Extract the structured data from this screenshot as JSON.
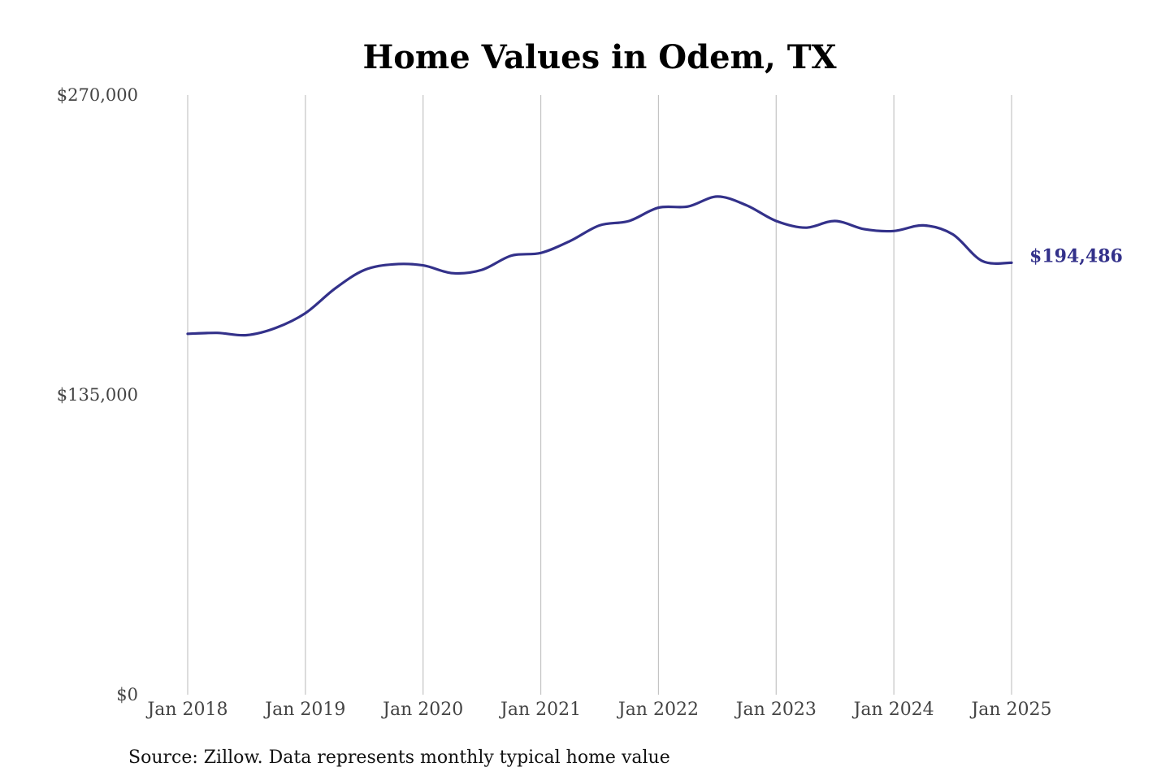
{
  "chart_data": {
    "type": "line",
    "title": "Home Values in Odem, TX",
    "source": "Source: Zillow. Data represents monthly typical home value",
    "ylim": [
      0,
      270000
    ],
    "y_ticks": [
      {
        "value": 270000,
        "label": "$270,000"
      },
      {
        "value": 135000,
        "label": "$135,000"
      },
      {
        "value": 0,
        "label": "$0"
      }
    ],
    "x_ticks": [
      {
        "value": "2018-01",
        "label": "Jan 2018"
      },
      {
        "value": "2019-01",
        "label": "Jan 2019"
      },
      {
        "value": "2020-01",
        "label": "Jan 2020"
      },
      {
        "value": "2021-01",
        "label": "Jan 2021"
      },
      {
        "value": "2022-01",
        "label": "Jan 2022"
      },
      {
        "value": "2023-01",
        "label": "Jan 2023"
      },
      {
        "value": "2024-01",
        "label": "Jan 2024"
      },
      {
        "value": "2025-01",
        "label": "Jan 2025"
      }
    ],
    "grid": "vertical",
    "series": [
      {
        "color": "#33318a",
        "end_label": "$194,486",
        "points": [
          {
            "x": "2018-01",
            "y": 162500
          },
          {
            "x": "2018-04",
            "y": 162900
          },
          {
            "x": "2018-07",
            "y": 161900
          },
          {
            "x": "2018-10",
            "y": 165200
          },
          {
            "x": "2019-01",
            "y": 171800
          },
          {
            "x": "2019-04",
            "y": 182800
          },
          {
            "x": "2019-07",
            "y": 191200
          },
          {
            "x": "2019-10",
            "y": 193800
          },
          {
            "x": "2020-01",
            "y": 193300
          },
          {
            "x": "2020-04",
            "y": 189800
          },
          {
            "x": "2020-07",
            "y": 191300
          },
          {
            "x": "2020-10",
            "y": 197700
          },
          {
            "x": "2021-01",
            "y": 198900
          },
          {
            "x": "2021-04",
            "y": 204300
          },
          {
            "x": "2021-07",
            "y": 211300
          },
          {
            "x": "2021-10",
            "y": 213300
          },
          {
            "x": "2022-01",
            "y": 219300
          },
          {
            "x": "2022-04",
            "y": 219800
          },
          {
            "x": "2022-07",
            "y": 224300
          },
          {
            "x": "2022-10",
            "y": 220300
          },
          {
            "x": "2023-01",
            "y": 213300
          },
          {
            "x": "2023-04",
            "y": 210300
          },
          {
            "x": "2023-07",
            "y": 213300
          },
          {
            "x": "2023-10",
            "y": 209600
          },
          {
            "x": "2024-01",
            "y": 208800
          },
          {
            "x": "2024-04",
            "y": 211300
          },
          {
            "x": "2024-07",
            "y": 207300
          },
          {
            "x": "2024-10",
            "y": 195300
          },
          {
            "x": "2025-01",
            "y": 194486
          }
        ]
      }
    ]
  }
}
